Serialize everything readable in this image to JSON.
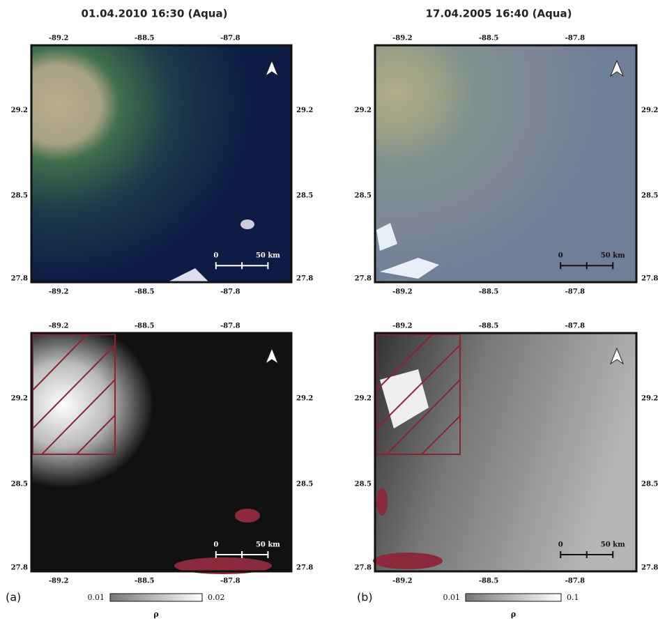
{
  "panels": [
    {
      "title": "01.04.2010 16:30 (Aqua)",
      "label": "(a)",
      "colorbar": {
        "min": "0.01",
        "max": "0.02",
        "symbol": "ρ"
      }
    },
    {
      "title": "17.04.2005 16:40 (Aqua)",
      "label": "(b)",
      "colorbar": {
        "min": "0.01",
        "max": "0.1",
        "symbol": "ρ"
      }
    }
  ],
  "lon_ticks": [
    "-89.2",
    "-88.5",
    "-87.8"
  ],
  "lat_ticks": [
    "29.2",
    "28.5",
    "27.8"
  ],
  "scale_bar": {
    "start": "0",
    "end": "50 km"
  }
}
